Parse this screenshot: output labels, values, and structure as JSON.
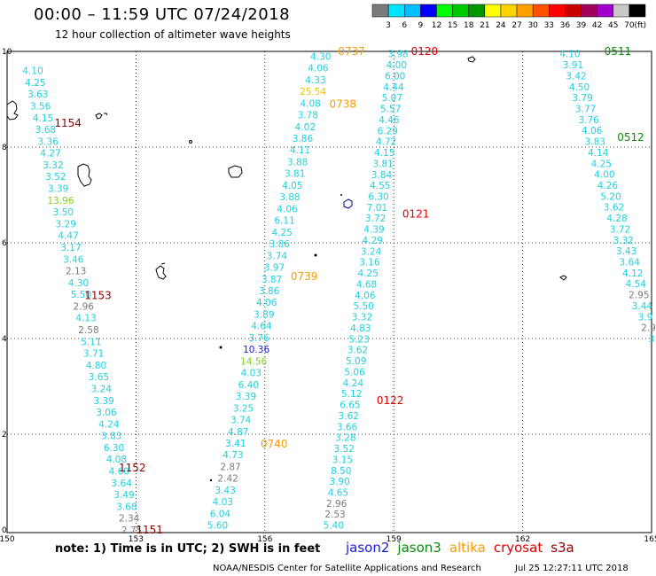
{
  "title": "00:00 – 11:59 UTC 07/24/2018",
  "subtitle": "12 hour collection of altimeter wave heights",
  "note": "note: 1) Time is in UTC; 2) SWH is in feet",
  "credit": "NOAA/NESDIS Center for Satellite Applications and Research",
  "timestamp": "Jul 25 12:27:11 UTC 2018",
  "satellites": [
    {
      "name": "jason2",
      "color": "#1a1adc"
    },
    {
      "name": "jason3",
      "color": "#0a8a0a"
    },
    {
      "name": "altika",
      "color": "#f39c0a"
    },
    {
      "name": "cryosat",
      "color": "#e00000"
    },
    {
      "name": "s3a",
      "color": "#8b0000"
    }
  ],
  "colorbar": {
    "unit": "(ft)",
    "ticks": [
      "3",
      "6",
      "9",
      "12",
      "15",
      "18",
      "21",
      "24",
      "27",
      "30",
      "33",
      "36",
      "39",
      "42",
      "45",
      "70"
    ],
    "colors": [
      "#7a7a7a",
      "#00e5ff",
      "#00bfff",
      "#0000ff",
      "#00ff00",
      "#00c800",
      "#009600",
      "#ffff00",
      "#ffd200",
      "#ffa000",
      "#ff5000",
      "#ff0000",
      "#c80000",
      "#a0005a",
      "#a000c8",
      "#c8c8c8",
      "#000000"
    ]
  },
  "axes": {
    "x_ticks": [
      "150",
      "153",
      "156",
      "159",
      "162",
      "165"
    ],
    "y_ticks": [
      "0",
      "2",
      "4",
      "6",
      "8",
      "10"
    ]
  },
  "chart_data": {
    "type": "scatter",
    "x_range": [
      150,
      165
    ],
    "y_range": [
      0,
      10
    ],
    "tracks": [
      {
        "sat": "s3a",
        "x0": 150.6,
        "y0": 9.6,
        "x1": 152.9,
        "y1": 0.0,
        "values": [
          "4.10",
          "4.25",
          "3.63",
          "3.56",
          "4.15",
          "3.68",
          "3.36",
          "4.27",
          "3.32",
          "3.52",
          "3.39",
          "13.96",
          "3.50",
          "3.29",
          "4.47",
          "3.17",
          "3.46",
          "2.13",
          "4.30",
          "5.50",
          "2.96",
          "4.13",
          "2.58",
          "5.11",
          "3.71",
          "4.80",
          "3.65",
          "3.24",
          "3.39",
          "3.06",
          "4.24",
          "3.83",
          "6.30",
          "4.08",
          "4.60",
          "3.64",
          "3.49",
          "3.68",
          "2.34",
          "2.75"
        ],
        "labels": [
          {
            "t": "1154",
            "x": 151.1,
            "y": 8.5
          },
          {
            "t": "1153",
            "x": 151.8,
            "y": 4.9
          },
          {
            "t": "1152",
            "x": 152.6,
            "y": 1.3
          },
          {
            "t": "1151",
            "x": 153.0,
            "y": 0.0
          }
        ]
      },
      {
        "sat": "altika",
        "x0": 157.3,
        "y0": 9.9,
        "x1": 154.9,
        "y1": 0.1,
        "values": [
          "4.30",
          "4.06",
          "4.33",
          "25.54",
          "4.08",
          "3.78",
          "4.02",
          "3.86",
          "4.11",
          "3.88",
          "3.81",
          "4.05",
          "3.88",
          "4.06",
          "6.11",
          "4.25",
          "3.86",
          "3.74",
          "3.97",
          "3.87",
          "3.86",
          "4.06",
          "3.89",
          "4.64",
          "3.76",
          "10.36",
          "14.56",
          "4.03",
          "6.40",
          "3.39",
          "3.25",
          "3.74",
          "4.87",
          "3.41",
          "4.73",
          "2.87",
          "2.42",
          "3.43",
          "4.03",
          "6.04",
          "5.60"
        ],
        "labels": [
          {
            "t": "0737",
            "x": 157.7,
            "y": 10.0
          },
          {
            "t": "0738",
            "x": 157.5,
            "y": 8.9
          },
          {
            "t": "0739",
            "x": 156.6,
            "y": 5.3
          },
          {
            "t": "0740",
            "x": 155.9,
            "y": 1.8
          }
        ]
      },
      {
        "sat": "cryosat",
        "x0": 159.1,
        "y0": 9.95,
        "x1": 157.6,
        "y1": 0.1,
        "values": [
          "3.98",
          "4.00",
          "6.00",
          "4.44",
          "5.07",
          "5.57",
          "4.46",
          "6.29",
          "4.72",
          "4.15",
          "3.81",
          "3.84",
          "4.55",
          "6.30",
          "7.01",
          "3.72",
          "4.39",
          "4.29",
          "3.24",
          "3.16",
          "4.25",
          "4.68",
          "4.06",
          "5.50",
          "3.32",
          "4.83",
          "5.23",
          "3.62",
          "5.09",
          "5.06",
          "4.24",
          "5.12",
          "6.65",
          "3.62",
          "3.66",
          "3.28",
          "3.52",
          "3.15",
          "8.50",
          "3.90",
          "4.65",
          "2.96",
          "2.53",
          "5.40"
        ],
        "labels": [
          {
            "t": "0120",
            "x": 159.4,
            "y": 10.0
          },
          {
            "t": "0121",
            "x": 159.2,
            "y": 6.6
          },
          {
            "t": "0122",
            "x": 158.6,
            "y": 2.7
          }
        ]
      },
      {
        "sat": "jason3",
        "x0": 163.1,
        "y0": 9.95,
        "x1": 165.0,
        "y1": 4.0,
        "values": [
          "4.10",
          "3.91",
          "3.42",
          "4.50",
          "3.79",
          "3.77",
          "3.76",
          "4.06",
          "3.83",
          "4.14",
          "4.25",
          "4.00",
          "4.26",
          "5.20",
          "3.62",
          "4.28",
          "3.72",
          "3.32",
          "3.43",
          "3.64",
          "4.12",
          "4.54",
          "2.95",
          "3.44",
          "3.9",
          "2.9",
          "3"
        ],
        "labels": [
          {
            "t": "0511",
            "x": 163.9,
            "y": 10.0
          },
          {
            "t": "0512",
            "x": 164.2,
            "y": 8.2
          }
        ]
      }
    ]
  }
}
